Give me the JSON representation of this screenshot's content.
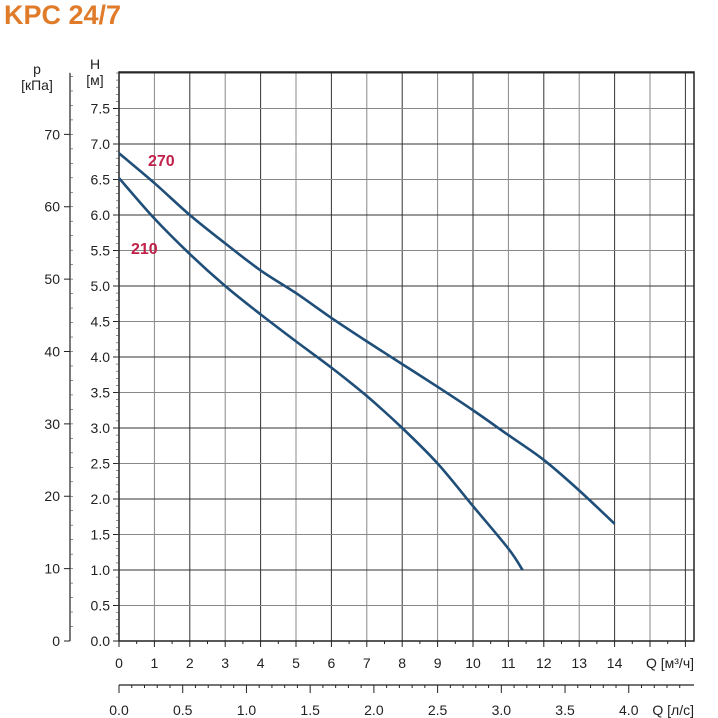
{
  "chart_data": {
    "type": "line",
    "title": "KPC 24/7",
    "ylabel_left_outer": "p",
    "ylabel_left_outer_unit": "[кПа]",
    "ylabel": "H",
    "ylabel_unit": "[м]",
    "xlabel": "Q [м³/ч]",
    "xlabel_secondary": "Q [л/с]",
    "xlim": [
      0,
      16
    ],
    "ylim": [
      0,
      8
    ],
    "ylim_kpa": [
      0,
      78.5
    ],
    "grid": true,
    "x_ticks": [
      "0",
      "1",
      "2",
      "3",
      "4",
      "5",
      "6",
      "7",
      "8",
      "9",
      "10",
      "11",
      "12",
      "13",
      "14"
    ],
    "y_ticks": [
      "0.0",
      "0.5",
      "1.0",
      "1.5",
      "2.0",
      "2.5",
      "3.0",
      "3.5",
      "4.0",
      "4.5",
      "5.0",
      "5.5",
      "6.0",
      "6.5",
      "7.0",
      "7.5"
    ],
    "kpa_ticks": [
      "0",
      "10",
      "20",
      "30",
      "40",
      "50",
      "60",
      "70"
    ],
    "ls_ticks": [
      "0.0",
      "0.5",
      "1.0",
      "1.5",
      "2.0",
      "2.5",
      "3.0",
      "3.5",
      "4.0"
    ],
    "series": [
      {
        "name": "270",
        "color": "#1f4e79",
        "x": [
          0,
          1,
          2,
          3,
          4,
          5,
          6,
          7,
          8,
          9,
          10,
          11,
          12,
          13,
          14
        ],
        "y": [
          6.87,
          6.45,
          6.0,
          5.6,
          5.22,
          4.9,
          4.55,
          4.22,
          3.9,
          3.58,
          3.25,
          2.9,
          2.55,
          2.12,
          1.65
        ]
      },
      {
        "name": "210",
        "color": "#1f4e79",
        "x": [
          0,
          1,
          2,
          3,
          4,
          5,
          6,
          7,
          8,
          9,
          10,
          11,
          11.4
        ],
        "y": [
          6.52,
          5.95,
          5.45,
          5.0,
          4.6,
          4.22,
          3.85,
          3.45,
          3.0,
          2.5,
          1.9,
          1.3,
          1.0
        ]
      }
    ],
    "colors": {
      "title": "#e07b2a",
      "curve_label": "#c0204a",
      "curve": "#1f4e79"
    }
  }
}
